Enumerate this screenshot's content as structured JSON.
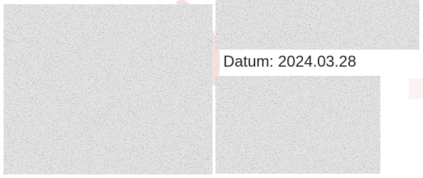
{
  "document": {
    "date_label": "Datum: 2024.03.28"
  }
}
